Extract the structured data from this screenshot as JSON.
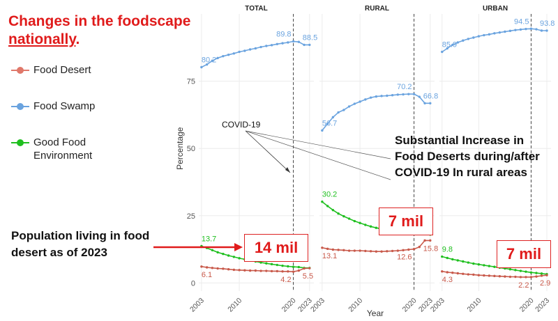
{
  "title": {
    "line1": "Changes in the foodscape",
    "line2": "nationally",
    "line2_suffix": "."
  },
  "legend": [
    {
      "label": "Food Desert",
      "color": "#e0786a"
    },
    {
      "label": "Food Swamp",
      "color": "#6aa3df"
    },
    {
      "label": "Good Food Environment",
      "color": "#1fbf1f"
    }
  ],
  "annotations": {
    "population_text": "Population living in food desert as of 2023",
    "covid_label": "COVID-19",
    "rural_note": "Substantial Increase in Food Deserts during/after COVID-19 In rural areas",
    "callouts": [
      "14 mil",
      "7 mil",
      "7 mil"
    ]
  },
  "colors": {
    "food_desert": "#c8594a",
    "food_swamp": "#6aa3df",
    "good_food": "#1fbf1f",
    "highlight": "#e01b1b",
    "grid": "#ececec"
  },
  "chart_data": {
    "type": "line",
    "facets": [
      "TOTAL",
      "RURAL",
      "URBAN"
    ],
    "xlabel": "Year",
    "ylabel": "Percentage",
    "x": [
      2003,
      2004,
      2005,
      2006,
      2007,
      2008,
      2009,
      2010,
      2011,
      2012,
      2013,
      2014,
      2015,
      2016,
      2017,
      2018,
      2019,
      2020,
      2021,
      2022,
      2023
    ],
    "xticks": [
      2003,
      2010,
      2020,
      2023
    ],
    "yticks": [
      0,
      25,
      50,
      75
    ],
    "ylim": [
      -3,
      100
    ],
    "xlim": [
      2002.5,
      2023.8
    ],
    "covid_year": 2020,
    "series": [
      {
        "facet": "TOTAL",
        "name": "Food Swamp",
        "values": [
          80.2,
          81.2,
          82.6,
          83.6,
          84.3,
          84.8,
          85.3,
          85.9,
          86.3,
          86.8,
          87.2,
          87.7,
          88.1,
          88.4,
          88.8,
          89.1,
          89.4,
          89.8,
          89.6,
          88.5,
          88.5
        ],
        "labels": [
          [
            2003,
            "80.2"
          ],
          [
            2020,
            "89.8"
          ],
          [
            2023,
            "88.5"
          ]
        ]
      },
      {
        "facet": "TOTAL",
        "name": "Good Food Environment",
        "values": [
          13.7,
          13.0,
          12.2,
          11.4,
          10.8,
          10.2,
          9.7,
          9.2,
          8.8,
          8.4,
          8.0,
          7.6,
          7.3,
          7.0,
          6.7,
          6.4,
          6.2,
          6.0,
          5.9,
          5.6,
          5.6
        ],
        "labels": [
          [
            2003,
            "13.7"
          ]
        ]
      },
      {
        "facet": "TOTAL",
        "name": "Food Desert",
        "values": [
          6.1,
          5.8,
          5.6,
          5.4,
          5.3,
          5.1,
          4.9,
          4.8,
          4.7,
          4.6,
          4.6,
          4.5,
          4.5,
          4.4,
          4.4,
          4.3,
          4.3,
          4.2,
          4.6,
          5.4,
          5.5
        ],
        "labels": [
          [
            2003,
            "6.1"
          ],
          [
            2020,
            "4.2"
          ],
          [
            2023,
            "5.5"
          ]
        ]
      },
      {
        "facet": "RURAL",
        "name": "Food Swamp",
        "values": [
          56.7,
          59.2,
          61.6,
          63.4,
          64.3,
          65.6,
          66.6,
          67.4,
          68.2,
          68.9,
          69.3,
          69.5,
          69.6,
          69.8,
          70.0,
          70.1,
          70.2,
          70.2,
          69.2,
          66.8,
          66.8
        ],
        "labels": [
          [
            2003,
            "56.7"
          ],
          [
            2020,
            "70.2"
          ],
          [
            2023,
            "66.8"
          ]
        ]
      },
      {
        "facet": "RURAL",
        "name": "Good Food Environment",
        "values": [
          30.2,
          28.6,
          27.1,
          25.8,
          24.8,
          23.9,
          23.0,
          22.3,
          21.6,
          21.0,
          20.5,
          20.1,
          19.8,
          19.5,
          19.2,
          19.0,
          18.8,
          18.6,
          18.4,
          18.2,
          18.0
        ],
        "labels": [
          [
            2003,
            "30.2"
          ]
        ]
      },
      {
        "facet": "RURAL",
        "name": "Food Desert",
        "values": [
          13.1,
          12.7,
          12.4,
          12.3,
          12.2,
          12.0,
          12.0,
          12.0,
          11.9,
          11.8,
          11.7,
          11.7,
          11.8,
          11.9,
          12.0,
          12.2,
          12.4,
          12.6,
          13.4,
          15.8,
          15.8
        ],
        "labels": [
          [
            2003,
            "13.1"
          ],
          [
            2020,
            "12.6"
          ],
          [
            2023,
            "15.8"
          ]
        ]
      },
      {
        "facet": "URBAN",
        "name": "Food Swamp",
        "values": [
          85.9,
          87.2,
          88.5,
          89.4,
          90.1,
          90.7,
          91.2,
          91.7,
          92.1,
          92.4,
          92.8,
          93.1,
          93.4,
          93.7,
          94.0,
          94.2,
          94.4,
          94.5,
          94.3,
          93.8,
          93.8
        ],
        "labels": [
          [
            2003,
            "85.9"
          ],
          [
            2020,
            "94.5"
          ],
          [
            2023,
            "93.8"
          ]
        ]
      },
      {
        "facet": "URBAN",
        "name": "Good Food Environment",
        "values": [
          9.8,
          9.3,
          8.8,
          8.4,
          8.0,
          7.6,
          7.2,
          6.9,
          6.6,
          6.3,
          6.0,
          5.7,
          5.4,
          5.1,
          4.8,
          4.5,
          4.2,
          3.9,
          3.7,
          3.5,
          3.3
        ],
        "labels": [
          [
            2003,
            "9.8"
          ]
        ]
      },
      {
        "facet": "URBAN",
        "name": "Food Desert",
        "values": [
          4.3,
          4.0,
          3.8,
          3.6,
          3.4,
          3.2,
          3.1,
          2.9,
          2.8,
          2.7,
          2.6,
          2.5,
          2.4,
          2.3,
          2.3,
          2.2,
          2.2,
          2.2,
          2.4,
          2.7,
          2.9
        ],
        "labels": [
          [
            2003,
            "4.3"
          ],
          [
            2020,
            "2.2"
          ],
          [
            2023,
            "2.9"
          ]
        ]
      }
    ]
  }
}
